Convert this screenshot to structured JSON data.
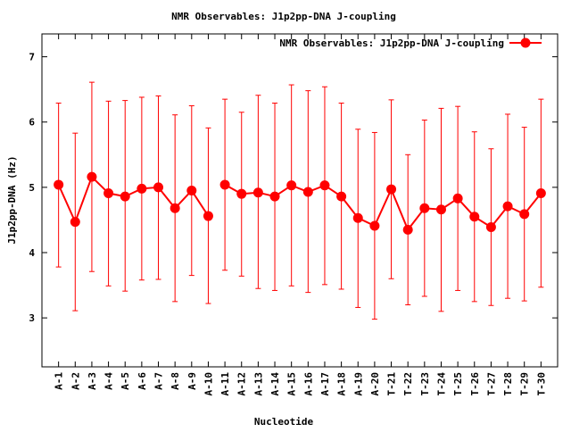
{
  "chart_data": {
    "type": "line",
    "title": "NMR Observables: J1p2pp-DNA J-coupling",
    "xlabel": "Nucleotide",
    "ylabel": "J1p2pp-DNA (Hz)",
    "ylim": [
      2.25,
      7.35
    ],
    "yticks": [
      3,
      4,
      5,
      6,
      7
    ],
    "grid": false,
    "legend_position": "top-right",
    "series": [
      {
        "name": "NMR Observables: J1p2pp-DNA J-coupling",
        "color": "#ff0000",
        "marker": "circle",
        "points": [
          {
            "label": "A-1",
            "value": 5.04,
            "low": 3.78,
            "high": 6.29
          },
          {
            "label": "A-2",
            "value": 4.47,
            "low": 3.11,
            "high": 5.83
          },
          {
            "label": "A-3",
            "value": 5.16,
            "low": 3.71,
            "high": 6.61
          },
          {
            "label": "A-4",
            "value": 4.91,
            "low": 3.49,
            "high": 6.32
          },
          {
            "label": "A-5",
            "value": 4.86,
            "low": 3.41,
            "high": 6.33
          },
          {
            "label": "A-6",
            "value": 4.98,
            "low": 3.58,
            "high": 6.38
          },
          {
            "label": "A-7",
            "value": 5.0,
            "low": 3.59,
            "high": 6.4
          },
          {
            "label": "A-8",
            "value": 4.68,
            "low": 3.25,
            "high": 6.11
          },
          {
            "label": "A-9",
            "value": 4.95,
            "low": 3.65,
            "high": 6.25
          },
          {
            "label": "A-10",
            "value": 4.56,
            "low": 3.22,
            "high": 5.91
          },
          {
            "label": "A-11",
            "value": 5.04,
            "low": 3.73,
            "high": 6.35
          },
          {
            "label": "A-12",
            "value": 4.9,
            "low": 3.64,
            "high": 6.15
          },
          {
            "label": "A-13",
            "value": 4.92,
            "low": 3.45,
            "high": 6.41
          },
          {
            "label": "A-14",
            "value": 4.86,
            "low": 3.42,
            "high": 6.29
          },
          {
            "label": "A-15",
            "value": 5.03,
            "low": 3.49,
            "high": 6.57
          },
          {
            "label": "A-16",
            "value": 4.93,
            "low": 3.39,
            "high": 6.48
          },
          {
            "label": "A-17",
            "value": 5.03,
            "low": 3.51,
            "high": 6.54
          },
          {
            "label": "A-18",
            "value": 4.86,
            "low": 3.44,
            "high": 6.29
          },
          {
            "label": "A-19",
            "value": 4.53,
            "low": 3.16,
            "high": 5.89
          },
          {
            "label": "A-20",
            "value": 4.41,
            "low": 2.98,
            "high": 5.84
          },
          {
            "label": "T-21",
            "value": 4.97,
            "low": 3.6,
            "high": 6.34
          },
          {
            "label": "T-22",
            "value": 4.35,
            "low": 3.2,
            "high": 5.5
          },
          {
            "label": "T-23",
            "value": 4.68,
            "low": 3.33,
            "high": 6.03
          },
          {
            "label": "T-24",
            "value": 4.66,
            "low": 3.1,
            "high": 6.21
          },
          {
            "label": "T-25",
            "value": 4.83,
            "low": 3.42,
            "high": 6.24
          },
          {
            "label": "T-26",
            "value": 4.55,
            "low": 3.25,
            "high": 5.85
          },
          {
            "label": "T-27",
            "value": 4.39,
            "low": 3.19,
            "high": 5.59
          },
          {
            "label": "T-28",
            "value": 4.71,
            "low": 3.3,
            "high": 6.12
          },
          {
            "label": "T-29",
            "value": 4.59,
            "low": 3.26,
            "high": 5.92
          },
          {
            "label": "T-30",
            "value": 4.91,
            "low": 3.47,
            "high": 6.35
          }
        ]
      }
    ]
  }
}
